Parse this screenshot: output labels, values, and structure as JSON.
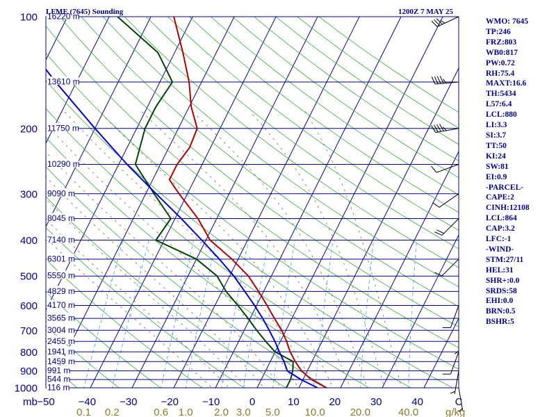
{
  "header": {
    "station": "LFME (7645) Sounding",
    "time": "1200Z  7 MAY 25"
  },
  "indices": [
    "WMO: 7645",
    "TP:246",
    "FRZ:803",
    "WB0:817",
    "PW:0.72",
    "RH:75.4",
    "MAXT:16.6",
    "TH:5434",
    "L57:6.4",
    "LCL:880",
    "LI:3.3",
    "SI:3.7",
    "TT:50",
    "KI:24",
    "SW:81",
    "EI:0.9",
    "-PARCEL-",
    "CAPE:2",
    "CINH:12108",
    "LCL:864",
    "CAP:3.2",
    "LFC:-1",
    "-WIND-",
    "STM:27/11",
    "HEL:31",
    "SHR+:0.0",
    "SRDS:58",
    "EHI:0.0",
    "BRN:0.5",
    "BSHR:5"
  ],
  "chart_data": {
    "type": "line",
    "title": "LFME (7645) Sounding",
    "xlabel": "C",
    "ylabel": "mb",
    "x_unit_label": "C",
    "y_unit_label": "mb",
    "mixing_unit_label": "g/kg",
    "xlim": [
      -50,
      50
    ],
    "ylim": [
      1000,
      100
    ],
    "temperature_ticks": [
      "-50",
      "-40",
      "-30",
      "-20",
      "-10",
      "0",
      "10",
      "20",
      "30",
      "40",
      "C"
    ],
    "pressure_ticks": [
      "100",
      "200",
      "300",
      "400",
      "500",
      "600",
      "700",
      "800",
      "900",
      "1000"
    ],
    "height_labels": [
      {
        "p": 100,
        "text": "16220 m"
      },
      {
        "p": 150,
        "text": "13610 m"
      },
      {
        "p": 200,
        "text": "11750 m"
      },
      {
        "p": 250,
        "text": "10290 m"
      },
      {
        "p": 300,
        "text": "9090 m"
      },
      {
        "p": 350,
        "text": "8045 m"
      },
      {
        "p": 400,
        "text": "7140 m"
      },
      {
        "p": 450,
        "text": "6301 m"
      },
      {
        "p": 500,
        "text": "5550 m"
      },
      {
        "p": 550,
        "text": "4829 m"
      },
      {
        "p": 600,
        "text": "4170 m"
      },
      {
        "p": 650,
        "text": "3565 m"
      },
      {
        "p": 700,
        "text": "3004 m"
      },
      {
        "p": 750,
        "text": "2455 m"
      },
      {
        "p": 800,
        "text": "1941 m"
      },
      {
        "p": 850,
        "text": "1459 m"
      },
      {
        "p": 900,
        "text": "991 m"
      },
      {
        "p": 950,
        "text": "544 m"
      },
      {
        "p": 1000,
        "text": "116 m"
      }
    ],
    "mixing_ratio_labels": [
      "0.1",
      "0.2",
      "0.6",
      "1.0",
      "2.0",
      "3.0",
      "5.0",
      "10.0",
      "20.0",
      "40.0"
    ],
    "mixing_ratio_values": [
      0.1,
      0.2,
      0.6,
      1.0,
      2.0,
      3.0,
      5.0,
      10.0,
      20.0,
      40.0
    ],
    "series": [
      {
        "name": "Temperature",
        "color": "#b00000",
        "points": [
          {
            "p": 1000,
            "t": 16.6
          },
          {
            "p": 950,
            "t": 12.0
          },
          {
            "p": 900,
            "t": 8.6
          },
          {
            "p": 850,
            "t": 6.0
          },
          {
            "p": 800,
            "t": 3.6
          },
          {
            "p": 750,
            "t": 1.5
          },
          {
            "p": 700,
            "t": -1.0
          },
          {
            "p": 650,
            "t": -4.2
          },
          {
            "p": 600,
            "t": -7.5
          },
          {
            "p": 550,
            "t": -11.2
          },
          {
            "p": 500,
            "t": -15.5
          },
          {
            "p": 450,
            "t": -21.5
          },
          {
            "p": 400,
            "t": -29.0
          },
          {
            "p": 350,
            "t": -34.5
          },
          {
            "p": 300,
            "t": -42.0
          },
          {
            "p": 275,
            "t": -46.0
          },
          {
            "p": 250,
            "t": -46.0
          },
          {
            "p": 225,
            "t": -45.0
          },
          {
            "p": 200,
            "t": -45.5
          },
          {
            "p": 175,
            "t": -49.5
          },
          {
            "p": 150,
            "t": -53.0
          },
          {
            "p": 125,
            "t": -58.0
          },
          {
            "p": 100,
            "t": -64.5
          }
        ]
      },
      {
        "name": "Dewpoint",
        "color": "#004400",
        "points": [
          {
            "p": 1000,
            "t": 7.0
          },
          {
            "p": 950,
            "t": 7.0
          },
          {
            "p": 900,
            "t": 6.5
          },
          {
            "p": 850,
            "t": 5.5
          },
          {
            "p": 800,
            "t": 0.0
          },
          {
            "p": 750,
            "t": -3.5
          },
          {
            "p": 700,
            "t": -7.0
          },
          {
            "p": 650,
            "t": -10.5
          },
          {
            "p": 600,
            "t": -14.5
          },
          {
            "p": 550,
            "t": -19.0
          },
          {
            "p": 500,
            "t": -23.0
          },
          {
            "p": 450,
            "t": -30.0
          },
          {
            "p": 400,
            "t": -42.0
          },
          {
            "p": 350,
            "t": -41.0
          },
          {
            "p": 300,
            "t": -48.0
          },
          {
            "p": 250,
            "t": -56.0
          },
          {
            "p": 200,
            "t": -58.0
          },
          {
            "p": 175,
            "t": -58.0
          },
          {
            "p": 150,
            "t": -57.0
          },
          {
            "p": 125,
            "t": -64.0
          },
          {
            "p": 100,
            "t": -78.0
          }
        ]
      },
      {
        "name": "Parcel",
        "color": "#0000cc",
        "points": [
          {
            "p": 1000,
            "t": 14.5
          },
          {
            "p": 950,
            "t": 9.5
          },
          {
            "p": 900,
            "t": 5.2
          },
          {
            "p": 850,
            "t": 3.3
          },
          {
            "p": 800,
            "t": 1.0
          },
          {
            "p": 750,
            "t": -1.3
          },
          {
            "p": 700,
            "t": -4.0
          },
          {
            "p": 650,
            "t": -7.0
          },
          {
            "p": 600,
            "t": -10.5
          },
          {
            "p": 550,
            "t": -14.5
          },
          {
            "p": 500,
            "t": -19.0
          },
          {
            "p": 450,
            "t": -24.5
          },
          {
            "p": 400,
            "t": -31.0
          },
          {
            "p": 350,
            "t": -38.5
          },
          {
            "p": 300,
            "t": -47.5
          },
          {
            "p": 250,
            "t": -58.0
          },
          {
            "p": 200,
            "t": -70.0
          },
          {
            "p": 150,
            "t": -85.0
          },
          {
            "p": 100,
            "t": -105.0
          }
        ]
      }
    ],
    "wind_barbs": [
      {
        "p": 100,
        "dir": 245,
        "spd": 35
      },
      {
        "p": 150,
        "dir": 265,
        "spd": 45
      },
      {
        "p": 200,
        "dir": 260,
        "spd": 45
      },
      {
        "p": 250,
        "dir": 250,
        "spd": 50
      },
      {
        "p": 300,
        "dir": 235,
        "spd": 10
      },
      {
        "p": 350,
        "dir": 225,
        "spd": 20
      },
      {
        "p": 450,
        "dir": 225,
        "spd": 10
      },
      {
        "p": 600,
        "dir": 200,
        "spd": 10
      },
      {
        "p": 700,
        "dir": 180,
        "spd": 5
      },
      {
        "p": 800,
        "dir": 200,
        "spd": 10
      },
      {
        "p": 900,
        "dir": 190,
        "spd": 5
      },
      {
        "p": 1000,
        "dir": 170,
        "spd": 5
      }
    ],
    "grid": true
  }
}
